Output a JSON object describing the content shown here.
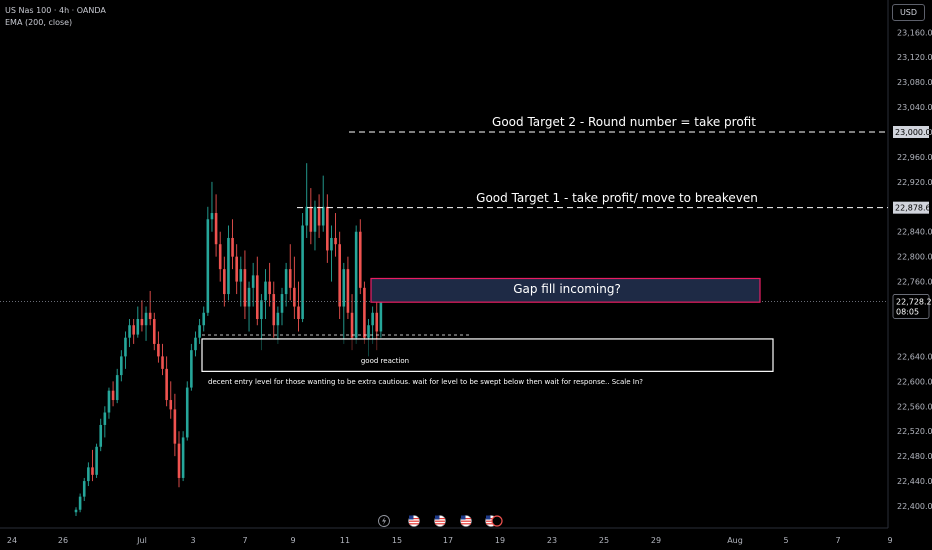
{
  "header": {
    "symbol_line": "US Nas 100 · 4h · OANDA",
    "indicator_line": "EMA (200, close)"
  },
  "currency_button": "USD",
  "price_axis": {
    "labels": [
      "23,160.0",
      "23,120.0",
      "23,080.0",
      "23,040.0",
      "23,000.0",
      "22,960.0",
      "22,920.0",
      "22,878.6",
      "22,840.0",
      "22,800.0",
      "22,760.0",
      "22,728.2",
      "22,640.0",
      "22,600.0",
      "22,560.0",
      "22,520.0",
      "22,480.0",
      "22,440.0",
      "22,400.0"
    ],
    "tick_values": [
      23160,
      23120,
      23080,
      23040,
      23000,
      22960,
      22920,
      22840,
      22800,
      22760,
      22640,
      22600,
      22560,
      22520,
      22480,
      22440,
      22400
    ],
    "tick_labels": [
      "23,160.0",
      "23,120.0",
      "23,080.0",
      "23,040.0",
      "23,000.0",
      "22,960.0",
      "22,920.0",
      "22,840.0",
      "22,800.0",
      "22,760.0",
      "22,640.0",
      "22,600.0",
      "22,560.0",
      "22,520.0",
      "22,480.0",
      "22,440.0",
      "22,400.0"
    ],
    "target2_label": "23,000.0",
    "target1_label": "22,878.6",
    "current_price_label": "22,728.2",
    "countdown_label": "08:05"
  },
  "time_axis": {
    "labels": [
      "24",
      "26",
      "Jul",
      "3",
      "7",
      "9",
      "11",
      "15",
      "17",
      "19",
      "23",
      "25",
      "29",
      "Aug",
      "5",
      "7",
      "9"
    ]
  },
  "annotations": {
    "target2": "Good Target 2 - Round number = take profit",
    "target1": "Good Target 1 - take profit/ move to breakeven",
    "gap_fill": "Gap fill incoming?",
    "good_reaction": "good reaction",
    "entry_note": "decent entry level for those wanting to be extra cautious. wait for level to be swept below then wait for response.. Scale In?"
  },
  "colors": {
    "background": "#000000",
    "up_candle": "#26a69a",
    "down_candle": "#ef5350",
    "gap_box_fill": "#1e2a45",
    "gap_box_border": "#e91e63",
    "support_box_border": "#ffffff",
    "text": "#ffffff"
  },
  "chart_data": {
    "type": "candlestick",
    "ylim": [
      22385,
      23180
    ],
    "levels": {
      "target2": 23000.0,
      "target1": 22878.6,
      "current": 22728.2
    },
    "zones": {
      "gap_fill": {
        "low": 22727,
        "high": 22765
      },
      "support": {
        "low": 22616,
        "high": 22668
      }
    },
    "candles": [
      [
        22390,
        22398,
        22384,
        22394
      ],
      [
        22394,
        22420,
        22390,
        22415
      ],
      [
        22415,
        22445,
        22408,
        22440
      ],
      [
        22440,
        22470,
        22432,
        22462
      ],
      [
        22462,
        22490,
        22440,
        22450
      ],
      [
        22450,
        22500,
        22445,
        22495
      ],
      [
        22495,
        22540,
        22488,
        22530
      ],
      [
        22530,
        22560,
        22510,
        22550
      ],
      [
        22550,
        22590,
        22540,
        22585
      ],
      [
        22585,
        22600,
        22560,
        22570
      ],
      [
        22570,
        22620,
        22565,
        22610
      ],
      [
        22610,
        22650,
        22600,
        22640
      ],
      [
        22640,
        22680,
        22620,
        22670
      ],
      [
        22670,
        22700,
        22655,
        22690
      ],
      [
        22690,
        22700,
        22660,
        22675
      ],
      [
        22675,
        22720,
        22670,
        22700
      ],
      [
        22700,
        22730,
        22680,
        22690
      ],
      [
        22690,
        22720,
        22665,
        22710
      ],
      [
        22710,
        22745,
        22690,
        22700
      ],
      [
        22700,
        22710,
        22650,
        22660
      ],
      [
        22660,
        22680,
        22630,
        22640
      ],
      [
        22640,
        22660,
        22610,
        22620
      ],
      [
        22620,
        22640,
        22560,
        22570
      ],
      [
        22570,
        22600,
        22540,
        22555
      ],
      [
        22555,
        22580,
        22480,
        22500
      ],
      [
        22500,
        22520,
        22430,
        22445
      ],
      [
        22445,
        22520,
        22440,
        22510
      ],
      [
        22510,
        22600,
        22505,
        22590
      ],
      [
        22590,
        22660,
        22585,
        22650
      ],
      [
        22650,
        22680,
        22640,
        22670
      ],
      [
        22670,
        22700,
        22660,
        22690
      ],
      [
        22690,
        22720,
        22680,
        22710
      ],
      [
        22710,
        22880,
        22705,
        22860
      ],
      [
        22860,
        22920,
        22840,
        22870
      ],
      [
        22870,
        22900,
        22800,
        22820
      ],
      [
        22820,
        22840,
        22760,
        22780
      ],
      [
        22780,
        22800,
        22720,
        22740
      ],
      [
        22740,
        22850,
        22730,
        22830
      ],
      [
        22830,
        22860,
        22780,
        22800
      ],
      [
        22800,
        22820,
        22740,
        22760
      ],
      [
        22760,
        22800,
        22720,
        22780
      ],
      [
        22780,
        22810,
        22700,
        22720
      ],
      [
        22720,
        22760,
        22680,
        22750
      ],
      [
        22750,
        22790,
        22720,
        22770
      ],
      [
        22770,
        22800,
        22690,
        22700
      ],
      [
        22700,
        22740,
        22650,
        22730
      ],
      [
        22730,
        22780,
        22700,
        22760
      ],
      [
        22760,
        22790,
        22720,
        22740
      ],
      [
        22740,
        22760,
        22670,
        22690
      ],
      [
        22690,
        22720,
        22660,
        22710
      ],
      [
        22710,
        22750,
        22690,
        22740
      ],
      [
        22740,
        22790,
        22720,
        22780
      ],
      [
        22780,
        22820,
        22730,
        22750
      ],
      [
        22750,
        22800,
        22700,
        22720
      ],
      [
        22720,
        22760,
        22680,
        22700
      ],
      [
        22700,
        22870,
        22695,
        22850
      ],
      [
        22850,
        22950,
        22830,
        22880
      ],
      [
        22880,
        22910,
        22820,
        22840
      ],
      [
        22840,
        22890,
        22810,
        22880
      ],
      [
        22880,
        22900,
        22830,
        22850
      ],
      [
        22850,
        22930,
        22840,
        22880
      ],
      [
        22880,
        22900,
        22790,
        22810
      ],
      [
        22810,
        22850,
        22760,
        22830
      ],
      [
        22830,
        22870,
        22800,
        22820
      ],
      [
        22820,
        22840,
        22700,
        22720
      ],
      [
        22720,
        22790,
        22660,
        22780
      ],
      [
        22780,
        22800,
        22700,
        22710
      ],
      [
        22710,
        22740,
        22650,
        22670
      ],
      [
        22670,
        22850,
        22660,
        22840
      ],
      [
        22840,
        22860,
        22740,
        22750
      ],
      [
        22750,
        22760,
        22660,
        22670
      ],
      [
        22670,
        22700,
        22640,
        22690
      ],
      [
        22690,
        22720,
        22660,
        22710
      ],
      [
        22710,
        22740,
        22650,
        22680
      ],
      [
        22680,
        22740,
        22670,
        22728
      ]
    ]
  }
}
